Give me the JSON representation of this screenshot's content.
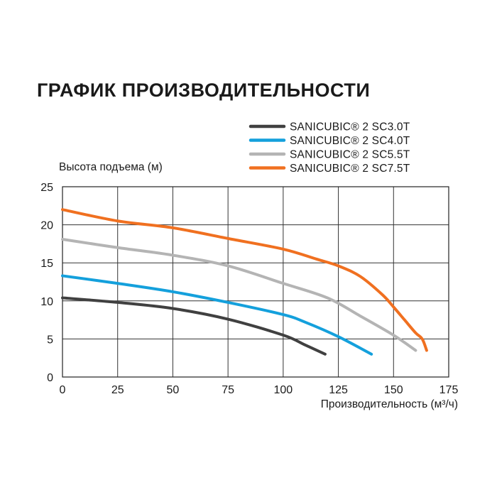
{
  "chart_data": {
    "type": "line",
    "title": "ГРАФИК ПРОИЗВОДИТЕЛЬНОСТИ",
    "xlabel": "Производительность (м³/ч)",
    "ylabel": "Высота подъема (м)",
    "xlim": [
      0,
      175
    ],
    "ylim": [
      0,
      25
    ],
    "xticks": [
      0,
      25,
      50,
      75,
      100,
      125,
      150,
      175
    ],
    "yticks": [
      0,
      5,
      10,
      15,
      20,
      25
    ],
    "grid": true,
    "legend_position": "top-right",
    "series": [
      {
        "name": "SANICUBIC® 2 SC3.0T",
        "color": "#404040",
        "x": [
          0,
          25,
          50,
          75,
          100,
          110,
          119
        ],
        "y": [
          10.4,
          9.8,
          9.0,
          7.6,
          5.5,
          4.2,
          3.0
        ]
      },
      {
        "name": "SANICUBIC® 2 SC4.0T",
        "color": "#14a0dc",
        "x": [
          0,
          25,
          50,
          75,
          100,
          110,
          125,
          140
        ],
        "y": [
          13.3,
          12.3,
          11.2,
          9.8,
          8.2,
          7.2,
          5.3,
          3.0
        ]
      },
      {
        "name": "SANICUBIC® 2 SC5.5T",
        "color": "#b4b4b4",
        "x": [
          0,
          25,
          50,
          75,
          100,
          120,
          135,
          150,
          160
        ],
        "y": [
          18.1,
          17.0,
          16.0,
          14.6,
          12.3,
          10.4,
          8.0,
          5.5,
          3.5
        ]
      },
      {
        "name": "SANICUBIC® 2 SC7.5T",
        "color": "#f07020",
        "x": [
          0,
          25,
          50,
          75,
          100,
          115,
          125,
          135,
          145,
          150,
          155,
          160,
          163,
          165
        ],
        "y": [
          22.0,
          20.5,
          19.6,
          18.2,
          16.8,
          15.5,
          14.6,
          13.2,
          10.8,
          9.2,
          7.5,
          5.8,
          5.0,
          3.5
        ]
      }
    ]
  }
}
